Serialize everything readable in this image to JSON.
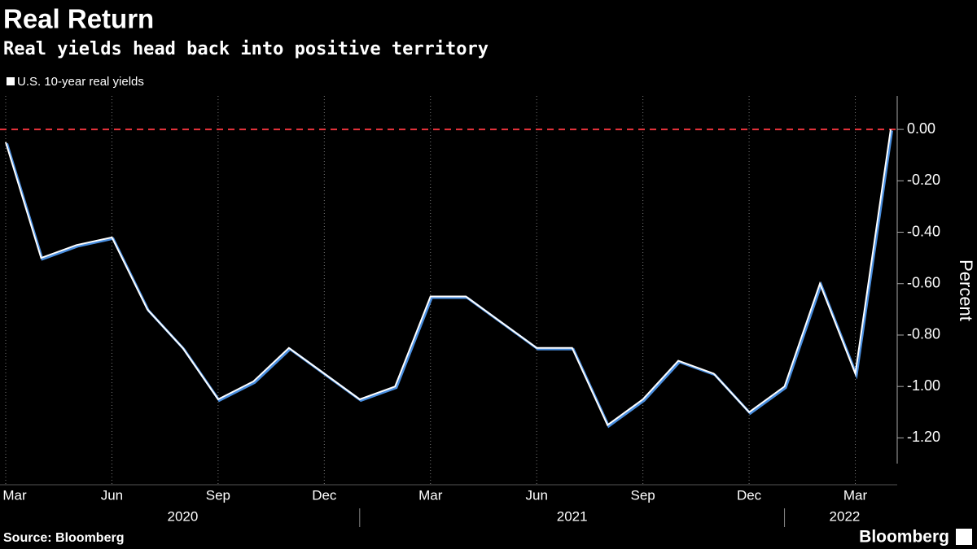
{
  "chart_data": {
    "type": "line",
    "title": "Real Return",
    "subtitle": "Real yields head back into positive territory",
    "y_axis_label": "Percent",
    "source": "Source: Bloomberg",
    "brand": "Bloomberg",
    "x": [
      "2020-03",
      "2020-04",
      "2020-05",
      "2020-06",
      "2020-07",
      "2020-08",
      "2020-09",
      "2020-10",
      "2020-11",
      "2020-12",
      "2021-01",
      "2021-02",
      "2021-03",
      "2021-04",
      "2021-05",
      "2021-06",
      "2021-07",
      "2021-08",
      "2021-09",
      "2021-10",
      "2021-11",
      "2021-12",
      "2022-01",
      "2022-02",
      "2022-03",
      "2022-04"
    ],
    "series": [
      {
        "name": "U.S. 10-year real yields",
        "color": "#ffffff",
        "values": [
          -0.05,
          -0.5,
          -0.45,
          -0.42,
          -0.7,
          -0.85,
          -1.05,
          -0.98,
          -0.85,
          -0.95,
          -1.05,
          -1.0,
          -0.65,
          -0.65,
          -0.75,
          -0.85,
          -0.85,
          -1.15,
          -1.05,
          -0.9,
          -0.95,
          -1.1,
          -1.0,
          -0.6,
          -0.95,
          0.0
        ]
      }
    ],
    "xlim": [
      "2020-03",
      "2022-04"
    ],
    "xticks": [
      {
        "value": "2020-03",
        "label": "Mar"
      },
      {
        "value": "2020-06",
        "label": "Jun"
      },
      {
        "value": "2020-09",
        "label": "Sep"
      },
      {
        "value": "2020-12",
        "label": "Dec"
      },
      {
        "value": "2021-03",
        "label": "Mar"
      },
      {
        "value": "2021-06",
        "label": "Jun"
      },
      {
        "value": "2021-09",
        "label": "Sep"
      },
      {
        "value": "2021-12",
        "label": "Dec"
      },
      {
        "value": "2022-03",
        "label": "Mar"
      }
    ],
    "year_labels": [
      "2020",
      "2021",
      "2022"
    ],
    "ylim": [
      -1.3,
      0.13
    ],
    "yticks": [
      {
        "value": 0,
        "label": "0.00"
      },
      {
        "value": -0.2,
        "label": "-0.20"
      },
      {
        "value": -0.4,
        "label": "-0.40"
      },
      {
        "value": -0.6,
        "label": "-0.60"
      },
      {
        "value": -0.8,
        "label": "-0.80"
      },
      {
        "value": -1.0,
        "label": "-1.00"
      },
      {
        "value": -1.2,
        "label": "-1.20"
      }
    ],
    "reference_line": {
      "value": 0,
      "color": "#e8333b"
    },
    "grid": true
  }
}
